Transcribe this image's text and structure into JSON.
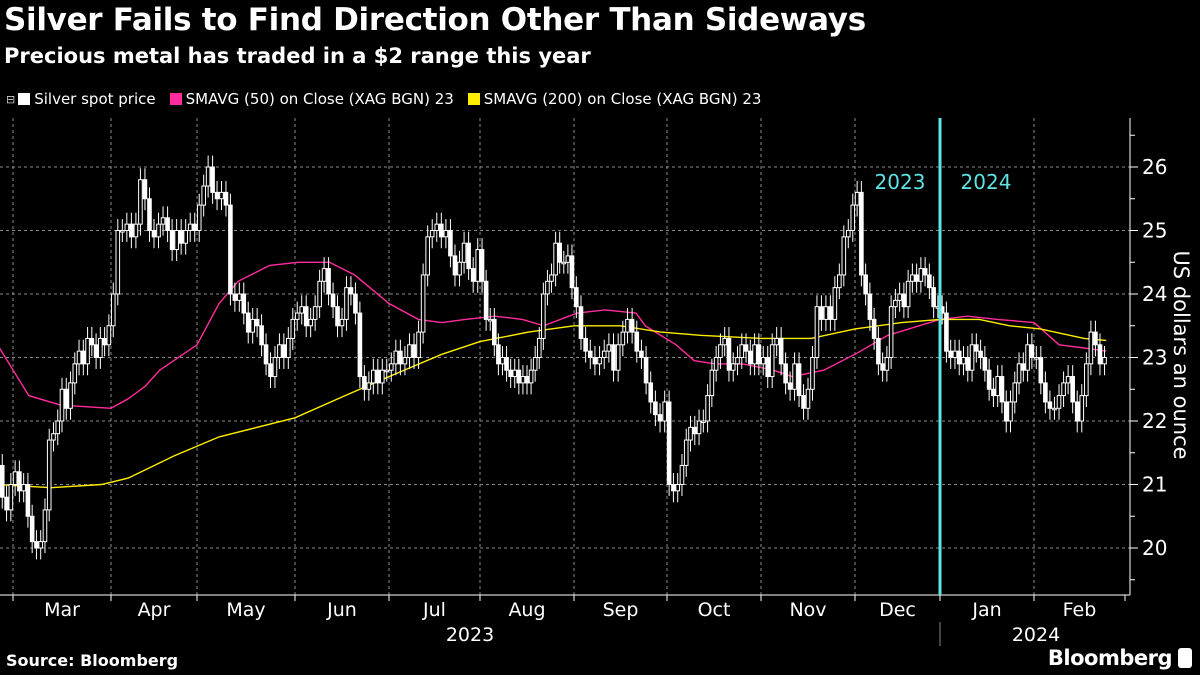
{
  "title": "Silver Fails to Find Direction Other Than Sideways",
  "subtitle": "Precious metal has traded in a $2 range this year",
  "legend": [
    {
      "label": "Silver spot price",
      "color": "#ffffff"
    },
    {
      "label": "SMAVG (50)  on Close (XAG BGN) 23",
      "color": "#ff2d9b"
    },
    {
      "label": "SMAVG (200)  on Close (XAG BGN) 23",
      "color": "#ffee00"
    }
  ],
  "source": "Source: Bloomberg",
  "brand": "Bloomberg",
  "colors": {
    "background": "#000000",
    "price": "#ffffff",
    "sma50": "#ff2d9b",
    "sma200": "#ffee00",
    "year_divider": "#5fe3e3",
    "grid": "#8a8a8a"
  },
  "chart_data": {
    "type": "candlestick",
    "title": "Silver Fails to Find Direction Other Than Sideways",
    "subtitle": "Precious metal has traded in a $2 range this year",
    "ylabel": "US dollars an ounce",
    "y_axis_side": "right",
    "ylim": [
      19.4,
      26.8
    ],
    "yticks": [
      "26",
      "25",
      "24",
      "23",
      "22",
      "21",
      "20"
    ],
    "grid": true,
    "x_months": [
      "Mar",
      "Apr",
      "May",
      "Jun",
      "Jul",
      "Aug",
      "Sep",
      "Oct",
      "Nov",
      "Dec",
      "Jan",
      "Feb"
    ],
    "x_years": [
      "2023",
      "2024"
    ],
    "divider_labels": [
      "2023",
      "2024"
    ],
    "price_closes_by_month": [
      {
        "month": "2023-02",
        "close": [
          21.3,
          20.8,
          20.6,
          21.0
        ]
      },
      {
        "month": "2023-03",
        "close": [
          21.2,
          20.9,
          21.0,
          20.5,
          20.1,
          20.0,
          20.1,
          20.6,
          21.7,
          21.8,
          22.0,
          22.5,
          22.2,
          22.6,
          22.9,
          23.1,
          22.9,
          23.3,
          23.2,
          23.0,
          23.3,
          23.2,
          23.5
        ]
      },
      {
        "month": "2023-04",
        "close": [
          24.0,
          25.0,
          25.0,
          25.1,
          24.9,
          25.1,
          25.8,
          25.5,
          25.0,
          24.9,
          25.1,
          25.2,
          25.0,
          24.7,
          25.0,
          24.8,
          25.0,
          25.1,
          25.0
        ]
      },
      {
        "month": "2023-05",
        "close": [
          25.4,
          25.7,
          26.0,
          25.6,
          25.5,
          25.6,
          25.4,
          24.0,
          23.9,
          24.0,
          23.7,
          23.4,
          23.6,
          23.5,
          23.2,
          22.9,
          22.7,
          23.0,
          23.2,
          23.0,
          23.3,
          23.6
        ]
      },
      {
        "month": "2023-06",
        "close": [
          23.7,
          23.8,
          23.5,
          23.6,
          23.8,
          24.2,
          24.4,
          24.0,
          23.8,
          23.5,
          23.6,
          24.1,
          24.0,
          23.7,
          22.7,
          22.5,
          22.6,
          22.8,
          22.6,
          22.8,
          22.8
        ]
      },
      {
        "month": "2023-07",
        "close": [
          22.9,
          23.1,
          22.9,
          23.0,
          23.2,
          23.0,
          23.4,
          24.3,
          24.9,
          25.0,
          25.1,
          24.9,
          25.0,
          24.6,
          24.3,
          24.5,
          24.8,
          24.4,
          24.2,
          24.7
        ]
      },
      {
        "month": "2023-08",
        "close": [
          24.2,
          23.6,
          23.6,
          23.2,
          22.9,
          23.0,
          22.8,
          22.7,
          22.8,
          22.6,
          22.7,
          22.6,
          22.8,
          23.0,
          23.3,
          24.0,
          24.2,
          24.3,
          24.8,
          24.5,
          24.5,
          24.6,
          24.1
        ]
      },
      {
        "month": "2023-09",
        "close": [
          23.8,
          23.3,
          23.1,
          23.0,
          22.9,
          23.0,
          23.1,
          23.2,
          22.8,
          23.2,
          23.4,
          23.6,
          23.4,
          23.1,
          23.0,
          22.6,
          22.3,
          22.1,
          22.0,
          22.3
        ]
      },
      {
        "month": "2023-10",
        "close": [
          21.0,
          20.9,
          21.0,
          21.3,
          21.7,
          21.9,
          21.8,
          22.0,
          22.0,
          22.4,
          22.8,
          23.0,
          23.2,
          23.3,
          22.8,
          22.9,
          23.0,
          23.2,
          23.1,
          22.9,
          23.2,
          22.9
        ]
      },
      {
        "month": "2023-11",
        "close": [
          23.0,
          22.7,
          23.2,
          23.3,
          22.9,
          22.6,
          22.5,
          22.9,
          22.4,
          22.2,
          22.5,
          23.0,
          23.8,
          23.6,
          23.8,
          23.6,
          24.1,
          24.3,
          24.9,
          25.0,
          25.4
        ]
      },
      {
        "month": "2023-12",
        "close": [
          25.6,
          24.3,
          24.0,
          23.6,
          23.3,
          22.9,
          22.8,
          23.0,
          23.8,
          23.9,
          24.0,
          23.8,
          24.2,
          24.3,
          24.2,
          24.4,
          24.3,
          24.1,
          23.8,
          23.8
        ]
      },
      {
        "month": "2024-01",
        "close": [
          23.7,
          23.1,
          23.0,
          23.1,
          22.9,
          23.0,
          22.8,
          23.2,
          23.1,
          23.0,
          22.8,
          22.5,
          22.4,
          22.7,
          22.3,
          22.0,
          22.3,
          22.6,
          22.9,
          22.8,
          23.2,
          23.0
        ]
      },
      {
        "month": "2024-02",
        "close": [
          23.0,
          22.6,
          22.3,
          22.2,
          22.2,
          22.4,
          22.6,
          22.7,
          22.3,
          22.0,
          22.4,
          22.9,
          23.4,
          23.2,
          22.9,
          23.0
        ]
      }
    ],
    "series": [
      {
        "name": "SMAVG (50)  on Close (XAG BGN) 23",
        "points": [
          [
            "2023-02-24",
            23.2
          ],
          [
            "2023-03-06",
            22.4
          ],
          [
            "2023-03-16",
            22.25
          ],
          [
            "2023-04-01",
            22.2
          ],
          [
            "2023-04-07",
            22.35
          ],
          [
            "2023-04-13",
            22.55
          ],
          [
            "2023-04-18",
            22.8
          ],
          [
            "2023-05-01",
            23.2
          ],
          [
            "2023-05-08",
            23.85
          ],
          [
            "2023-05-14",
            24.2
          ],
          [
            "2023-05-24",
            24.45
          ],
          [
            "2023-06-02",
            24.5
          ],
          [
            "2023-06-12",
            24.5
          ],
          [
            "2023-06-20",
            24.3
          ],
          [
            "2023-07-01",
            23.85
          ],
          [
            "2023-07-11",
            23.6
          ],
          [
            "2023-07-19",
            23.55
          ],
          [
            "2023-07-27",
            23.6
          ],
          [
            "2023-08-06",
            23.65
          ],
          [
            "2023-08-15",
            23.6
          ],
          [
            "2023-08-22",
            23.5
          ],
          [
            "2023-09-02",
            23.7
          ],
          [
            "2023-09-11",
            23.75
          ],
          [
            "2023-09-21",
            23.7
          ],
          [
            "2023-09-24",
            23.5
          ],
          [
            "2023-10-04",
            23.2
          ],
          [
            "2023-10-10",
            22.95
          ],
          [
            "2023-10-17",
            22.9
          ],
          [
            "2023-10-26",
            22.9
          ],
          [
            "2023-11-05",
            22.8
          ],
          [
            "2023-11-11",
            22.7
          ],
          [
            "2023-11-21",
            22.8
          ],
          [
            "2023-12-01",
            23.05
          ],
          [
            "2023-12-13",
            23.35
          ],
          [
            "2024-01-01",
            23.6
          ],
          [
            "2024-01-10",
            23.65
          ],
          [
            "2024-01-20",
            23.6
          ],
          [
            "2024-02-01",
            23.55
          ],
          [
            "2024-02-09",
            23.2
          ],
          [
            "2024-02-17",
            23.15
          ],
          [
            "2024-02-24",
            23.1
          ]
        ]
      },
      {
        "name": "SMAVG (200)  on Close (XAG BGN) 23",
        "points": [
          [
            "2023-02-24",
            21.0
          ],
          [
            "2023-03-13",
            20.95
          ],
          [
            "2023-03-29",
            21.0
          ],
          [
            "2023-04-07",
            21.1
          ],
          [
            "2023-04-23",
            21.45
          ],
          [
            "2023-05-08",
            21.75
          ],
          [
            "2023-06-01",
            22.05
          ],
          [
            "2023-06-17",
            22.4
          ],
          [
            "2023-07-01",
            22.7
          ],
          [
            "2023-07-19",
            23.05
          ],
          [
            "2023-08-01",
            23.25
          ],
          [
            "2023-08-17",
            23.4
          ],
          [
            "2023-09-01",
            23.5
          ],
          [
            "2023-09-16",
            23.5
          ],
          [
            "2023-09-29",
            23.4
          ],
          [
            "2023-10-12",
            23.35
          ],
          [
            "2023-11-01",
            23.3
          ],
          [
            "2023-11-17",
            23.3
          ],
          [
            "2023-12-01",
            23.45
          ],
          [
            "2023-12-18",
            23.55
          ],
          [
            "2024-01-01",
            23.6
          ],
          [
            "2024-01-14",
            23.6
          ],
          [
            "2024-01-24",
            23.5
          ],
          [
            "2024-02-03",
            23.45
          ],
          [
            "2024-02-17",
            23.3
          ],
          [
            "2024-02-24",
            23.27
          ]
        ]
      }
    ]
  }
}
